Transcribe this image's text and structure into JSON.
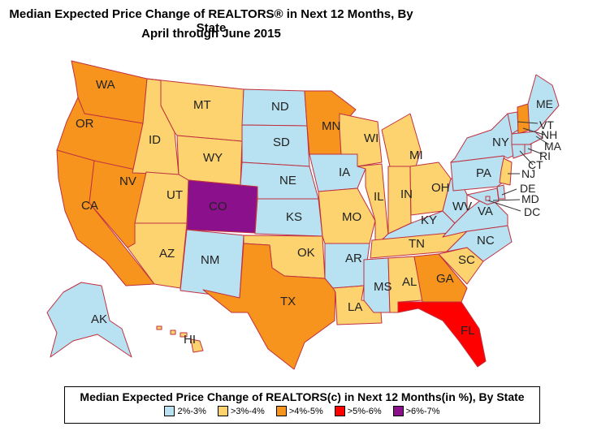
{
  "title_line1": "Median Expected Price Change of REALTORS® in Next 12 Months, By State",
  "title_line2": "April through June 2015",
  "legend": {
    "title": "Median Expected Price Change of REALTORS(c) in Next 12 Months(in %), By State",
    "items": [
      {
        "label": "2%-3%",
        "color": "#b8e2f2"
      },
      {
        "label": ">3%-4%",
        "color": "#fcd36e"
      },
      {
        "label": ">4%-5%",
        "color": "#f7941d"
      },
      {
        "label": ">5%-6%",
        "color": "#ff0000"
      },
      {
        "label": ">6%-7%",
        "color": "#8b108b"
      }
    ]
  },
  "states": {
    "WA": {
      "label": "WA",
      "category": ">4%-5%"
    },
    "OR": {
      "label": "OR",
      "category": ">4%-5%"
    },
    "CA": {
      "label": "CA",
      "category": ">4%-5%"
    },
    "NV": {
      "label": "NV",
      "category": ">4%-5%"
    },
    "ID": {
      "label": "ID",
      "category": ">3%-4%"
    },
    "MT": {
      "label": "MT",
      "category": ">3%-4%"
    },
    "WY": {
      "label": "WY",
      "category": ">3%-4%"
    },
    "UT": {
      "label": "UT",
      "category": ">3%-4%"
    },
    "AZ": {
      "label": "AZ",
      "category": ">3%-4%"
    },
    "CO": {
      "label": "CO",
      "category": ">6%-7%"
    },
    "NM": {
      "label": "NM",
      "category": "2%-3%"
    },
    "ND": {
      "label": "ND",
      "category": "2%-3%"
    },
    "SD": {
      "label": "SD",
      "category": "2%-3%"
    },
    "NE": {
      "label": "NE",
      "category": "2%-3%"
    },
    "KS": {
      "label": "KS",
      "category": "2%-3%"
    },
    "OK": {
      "label": "OK",
      "category": ">3%-4%"
    },
    "TX": {
      "label": "TX",
      "category": ">4%-5%"
    },
    "MN": {
      "label": "MN",
      "category": ">4%-5%"
    },
    "IA": {
      "label": "IA",
      "category": "2%-3%"
    },
    "MO": {
      "label": "MO",
      "category": ">3%-4%"
    },
    "AR": {
      "label": "AR",
      "category": "2%-3%"
    },
    "LA": {
      "label": "LA",
      "category": ">3%-4%"
    },
    "WI": {
      "label": "WI",
      "category": ">3%-4%"
    },
    "IL": {
      "label": "IL",
      "category": ">3%-4%"
    },
    "MI": {
      "label": "MI",
      "category": ">3%-4%"
    },
    "IN": {
      "label": "IN",
      "category": ">3%-4%"
    },
    "OH": {
      "label": "OH",
      "category": ">3%-4%"
    },
    "KY": {
      "label": "KY",
      "category": "2%-3%"
    },
    "TN": {
      "label": "TN",
      "category": ">3%-4%"
    },
    "MS": {
      "label": "MS",
      "category": "2%-3%"
    },
    "AL": {
      "label": "AL",
      "category": ">3%-4%"
    },
    "GA": {
      "label": "GA",
      "category": ">4%-5%"
    },
    "FL": {
      "label": "FL",
      "category": ">5%-6%"
    },
    "SC": {
      "label": "SC",
      "category": ">3%-4%"
    },
    "NC": {
      "label": "NC",
      "category": "2%-3%"
    },
    "VA": {
      "label": "VA",
      "category": "2%-3%"
    },
    "WV": {
      "label": "WV",
      "category": "2%-3%"
    },
    "PA": {
      "label": "PA",
      "category": "2%-3%"
    },
    "NY": {
      "label": "NY",
      "category": "2%-3%"
    },
    "VT": {
      "label": "VT",
      "category": "2%-3%"
    },
    "NH": {
      "label": "NH",
      "category": ">4%-5%"
    },
    "ME": {
      "label": "ME",
      "category": "2%-3%"
    },
    "MA": {
      "label": "MA",
      "category": "2%-3%"
    },
    "RI": {
      "label": "RI",
      "category": "2%-3%"
    },
    "CT": {
      "label": "CT",
      "category": "2%-3%"
    },
    "NJ": {
      "label": "NJ",
      "category": ">3%-4%"
    },
    "DE": {
      "label": "DE",
      "category": "2%-3%"
    },
    "MD": {
      "label": "MD",
      "category": "2%-3%"
    },
    "DC": {
      "label": "DC",
      "category": "2%-3%"
    },
    "AK": {
      "label": "AK",
      "category": "2%-3%"
    },
    "HI": {
      "label": "HI",
      "category": ">3%-4%"
    }
  }
}
